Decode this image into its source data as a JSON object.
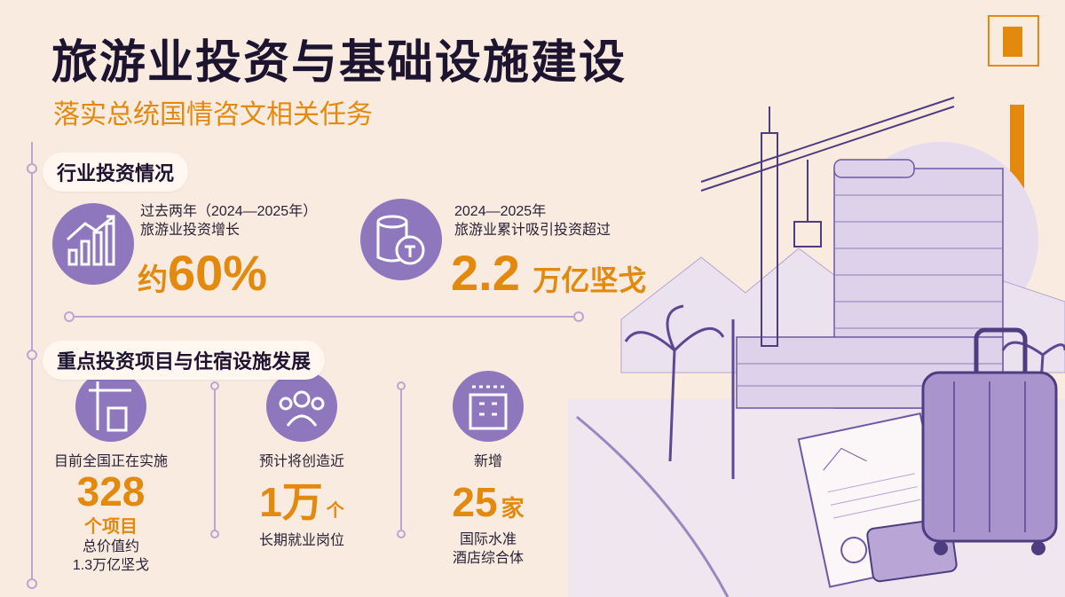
{
  "header": {
    "title": "旅游业投资与基础设施建设",
    "subtitle": "落实总统国情咨文相关任务"
  },
  "section1": {
    "heading": "行业投资情况",
    "stats": [
      {
        "lines": [
          "过去两年（2024—2025年）",
          "旅游业投资增长"
        ],
        "prefix": "约",
        "value": "60%"
      },
      {
        "lines": [
          "2024—2025年",
          "旅游业累计吸引投资超过"
        ],
        "value": "2.2",
        "unit": "万亿坚戈"
      }
    ]
  },
  "section2": {
    "heading": "重点投资项目与住宿设施发展",
    "items": [
      {
        "label": "目前全国正在实施",
        "value": "328",
        "unit": "个项目",
        "notes": [
          "总价值约",
          "1.3万亿坚戈"
        ]
      },
      {
        "label": "预计将创造近",
        "value": "1万",
        "unit": "个",
        "notes": [
          "长期就业岗位"
        ]
      },
      {
        "label": "新增",
        "value": "25",
        "unit": "家",
        "notes": [
          "国际水准",
          "酒店综合体"
        ]
      }
    ]
  }
}
